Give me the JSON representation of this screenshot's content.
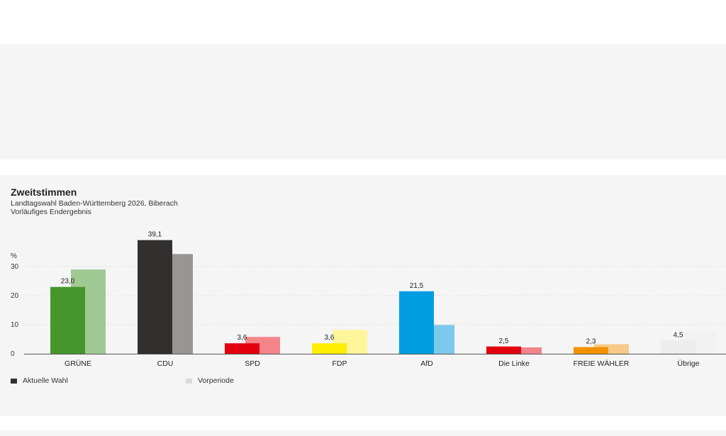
{
  "chart_data": {
    "type": "bar",
    "title": "Zweitstimmen",
    "subtitle": "Landtagswahl Baden-Württemberg 2026, Biberach",
    "subtitle2": "Vorläufiges Endergebnis",
    "ylabel": "%",
    "ylim": [
      0,
      40
    ],
    "yticks": [
      0,
      10,
      20,
      30
    ],
    "grid": true,
    "categories": [
      "GRÜNE",
      "CDU",
      "SPD",
      "FDP",
      "AfD",
      "Die Linke",
      "FREIE WÄHLER",
      "Übrige"
    ],
    "series": [
      {
        "name": "Aktuelle Wahl",
        "values": [
          23.0,
          39.1,
          3.6,
          3.6,
          21.5,
          2.5,
          2.3,
          4.5
        ],
        "labels": [
          "23,0",
          "39,1",
          "3,6",
          "3,6",
          "21,5",
          "2,5",
          "2,3",
          "4,5"
        ],
        "colors": [
          "#46962b",
          "#32302e",
          "#e3000f",
          "#ffed00",
          "#009ee0",
          "#e3000f",
          "#f39200",
          "#ececec"
        ]
      },
      {
        "name": "Vorperiode",
        "values": [
          29.0,
          34.3,
          5.8,
          8.2,
          9.9,
          2.2,
          3.3,
          7.6
        ],
        "colors": [
          "#a0c994",
          "#979695",
          "#f2848a",
          "#fff59a",
          "#7cc9ec",
          "#f2848a",
          "#f7c98a",
          "#f1f1f1"
        ]
      }
    ],
    "legend_position": "bottom-left",
    "legend_colors": [
      "#32302e",
      "#d9d9d9"
    ]
  }
}
